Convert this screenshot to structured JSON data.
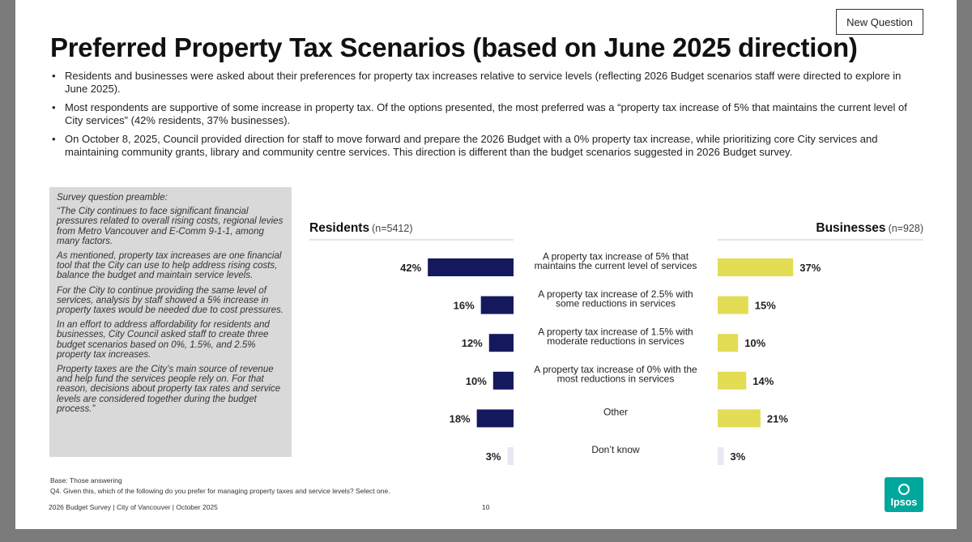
{
  "new_question_label": "New Question",
  "title": "Preferred Property Tax Scenarios (based on June 2025 direction)",
  "bullets": [
    "Residents and businesses were asked about their preferences for property tax increases relative to service levels (reflecting 2026 Budget scenarios staff were directed to explore in June 2025).",
    "Most respondents are supportive of some increase in property tax. Of the options presented, the most preferred was a “property tax increase of 5% that maintains the current level of City services” (42% residents, 37% businesses).",
    "On October 8, 2025, Council provided direction for staff to move forward and prepare the 2026 Budget with a 0% property tax increase, while prioritizing core City services and maintaining community grants, library and community centre services. This direction is different than the budget scenarios suggested in 2026 Budget survey."
  ],
  "preamble": {
    "heading": "Survey question preamble:",
    "paragraphs": [
      "“The City continues to face significant financial pressures related to overall rising costs, regional levies from Metro Vancouver and E-Comm 9-1-1, among many factors.",
      "As mentioned, property tax increases are one financial tool that the City can use to help address rising costs, balance the budget and maintain service levels.",
      "For the City to continue providing the same level of services, analysis by staff showed a 5% increase in property taxes would be needed due to cost pressures.",
      "In an effort to address affordability for residents and businesses, City Council asked staff to create three budget scenarios based on 0%, 1.5%, and 2.5% property tax increases.",
      "Property taxes are the City’s main source of revenue and help fund the services people rely on. For that reason, decisions about property tax rates and service levels are considered together during the budget process.”"
    ]
  },
  "chart_data": {
    "type": "bar",
    "orientation": "horizontal",
    "categories": [
      [
        "A property tax increase of 5% that",
        "maintains the current level of services"
      ],
      [
        "A property tax increase of 2.5% with",
        "some reductions in services"
      ],
      [
        "A property tax increase of 1.5% with",
        "moderate reductions in services"
      ],
      [
        "A property tax increase of 0% with the",
        "most reductions in services"
      ],
      [
        "Other"
      ],
      [
        "Don’t know"
      ]
    ],
    "series": [
      {
        "name": "Residents",
        "n_label": "(n=5412)",
        "values": [
          42,
          16,
          12,
          10,
          18,
          3
        ],
        "value_labels": [
          "42%",
          "16%",
          "12%",
          "10%",
          "18%",
          "3%"
        ],
        "color": "#14195e"
      },
      {
        "name": "Businesses",
        "n_label": "(n=928)",
        "values": [
          37,
          15,
          10,
          14,
          21,
          3
        ],
        "value_labels": [
          "37%",
          "15%",
          "10%",
          "14%",
          "21%",
          "3%"
        ],
        "color": "#e3dc55"
      }
    ],
    "small_value_color": "#e6e9f2",
    "unit": "%"
  },
  "footer": {
    "base": "Base: Those answering",
    "question": "Q4. Given this, which of the following do you prefer for managing property taxes and service levels? Select one.",
    "source": "2026 Budget Survey | City of Vancouver | October 2025",
    "page_number": "10",
    "logo_text": "Ipsos"
  }
}
